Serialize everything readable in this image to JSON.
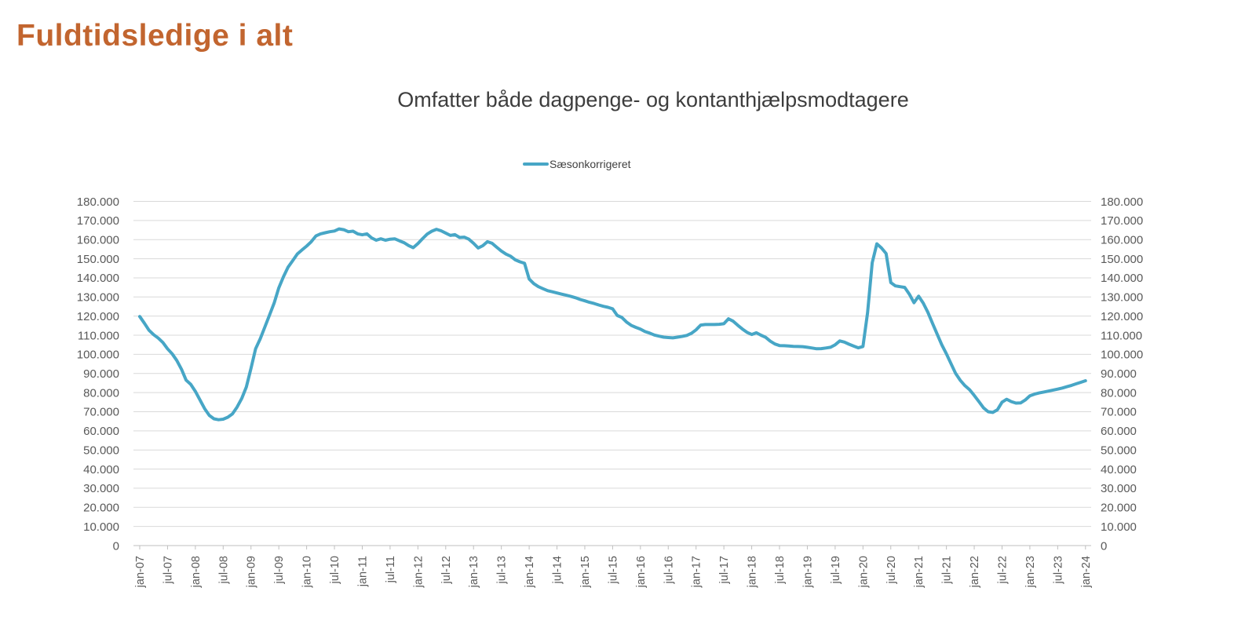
{
  "page": {
    "title": "Fuldtidsledige i alt"
  },
  "colors": {
    "title": "#C2652F",
    "subtitle": "#3D3D3D",
    "series_line": "#47A6C6",
    "gridline": "#D9D9D9",
    "axis_line": "#BFBFBF",
    "tick_label": "#595959",
    "legend_text": "#404040",
    "background": "#FFFFFF"
  },
  "chart_data": {
    "type": "line",
    "title": "Omfatter både dagpenge- og kontanthjælpsmodtagere",
    "legend": {
      "position": "top",
      "entries": [
        "Sæsonkorrigeret"
      ]
    },
    "grid": true,
    "x": {
      "start": "jan-07",
      "end": "jan-24",
      "interval": "monthly",
      "tick_every_months": 6,
      "tick_labels": [
        "jan-07",
        "jul-07",
        "jan-08",
        "jul-08",
        "jan-09",
        "jul-09",
        "jan-10",
        "jul-10",
        "jan-11",
        "jul-11",
        "jan-12",
        "jul-12",
        "jan-13",
        "jul-13",
        "jan-14",
        "jul-14",
        "jan-15",
        "jul-15",
        "jan-16",
        "jul-16",
        "jan-17",
        "jul-17",
        "jan-18",
        "jul-18",
        "jan-19",
        "jul-19",
        "jan-20",
        "jul-20",
        "jan-21",
        "jul-21",
        "jan-22",
        "jul-22",
        "jan-23",
        "jul-23",
        "jan-24"
      ]
    },
    "y": {
      "min": 0,
      "max": 180000,
      "grid_step": 10000,
      "sides": [
        "left",
        "right"
      ],
      "tick_labels": [
        "0",
        "10.000",
        "20.000",
        "30.000",
        "40.000",
        "50.000",
        "60.000",
        "70.000",
        "80.000",
        "90.000",
        "100.000",
        "110.000",
        "120.000",
        "130.000",
        "140.000",
        "150.000",
        "160.000",
        "170.000",
        "180.000"
      ]
    },
    "series": [
      {
        "name": "Sæsonkorrigeret",
        "color": "#47A6C6",
        "values": [
          119800,
          116300,
          112600,
          110300,
          108500,
          106200,
          102900,
          100300,
          96800,
          92200,
          86500,
          84300,
          80600,
          76100,
          71600,
          68100,
          66300,
          65800,
          66100,
          67100,
          68900,
          72400,
          76900,
          82900,
          92600,
          102900,
          108200,
          114400,
          120600,
          126900,
          134800,
          140600,
          145600,
          149000,
          152500,
          154600,
          156600,
          158900,
          161900,
          163000,
          163600,
          164100,
          164500,
          165600,
          165200,
          164100,
          164400,
          163000,
          162500,
          163000,
          160900,
          159700,
          160400,
          159700,
          160200,
          160400,
          159400,
          158400,
          156900,
          155800,
          157900,
          160500,
          162900,
          164400,
          165400,
          164600,
          163400,
          162200,
          162600,
          161100,
          161300,
          160200,
          158100,
          155600,
          156800,
          158900,
          158100,
          156000,
          154000,
          152400,
          151300,
          149400,
          148400,
          147600,
          139400,
          137000,
          135400,
          134300,
          133300,
          132700,
          132100,
          131500,
          130900,
          130300,
          129600,
          128700,
          128000,
          127200,
          126600,
          125800,
          125100,
          124600,
          123800,
          120300,
          119300,
          116900,
          115200,
          114100,
          113200,
          111900,
          111100,
          110100,
          109500,
          109000,
          108800,
          108600,
          109000,
          109400,
          109900,
          111000,
          112800,
          115300,
          115600,
          115600,
          115600,
          115700,
          116000,
          118600,
          117300,
          115200,
          113200,
          111500,
          110400,
          111300,
          110000,
          108900,
          106900,
          105400,
          104600,
          104500,
          104400,
          104200,
          104100,
          104000,
          103700,
          103300,
          102900,
          103000,
          103300,
          103700,
          105000,
          107000,
          106400,
          105300,
          104300,
          103400,
          104100,
          121800,
          147900,
          157800,
          155600,
          152700,
          137500,
          135800,
          135400,
          135000,
          131500,
          127000,
          130400,
          126800,
          122000,
          116200,
          110600,
          105000,
          100300,
          95100,
          90000,
          86400,
          83600,
          81500,
          78500,
          75300,
          72000,
          70000,
          69600,
          71000,
          75000,
          76500,
          75300,
          74500,
          74600,
          76100,
          78300,
          79200,
          79800,
          80300,
          80800,
          81300,
          81800,
          82400,
          83100,
          83800,
          84600,
          85400,
          86200
        ]
      }
    ]
  }
}
